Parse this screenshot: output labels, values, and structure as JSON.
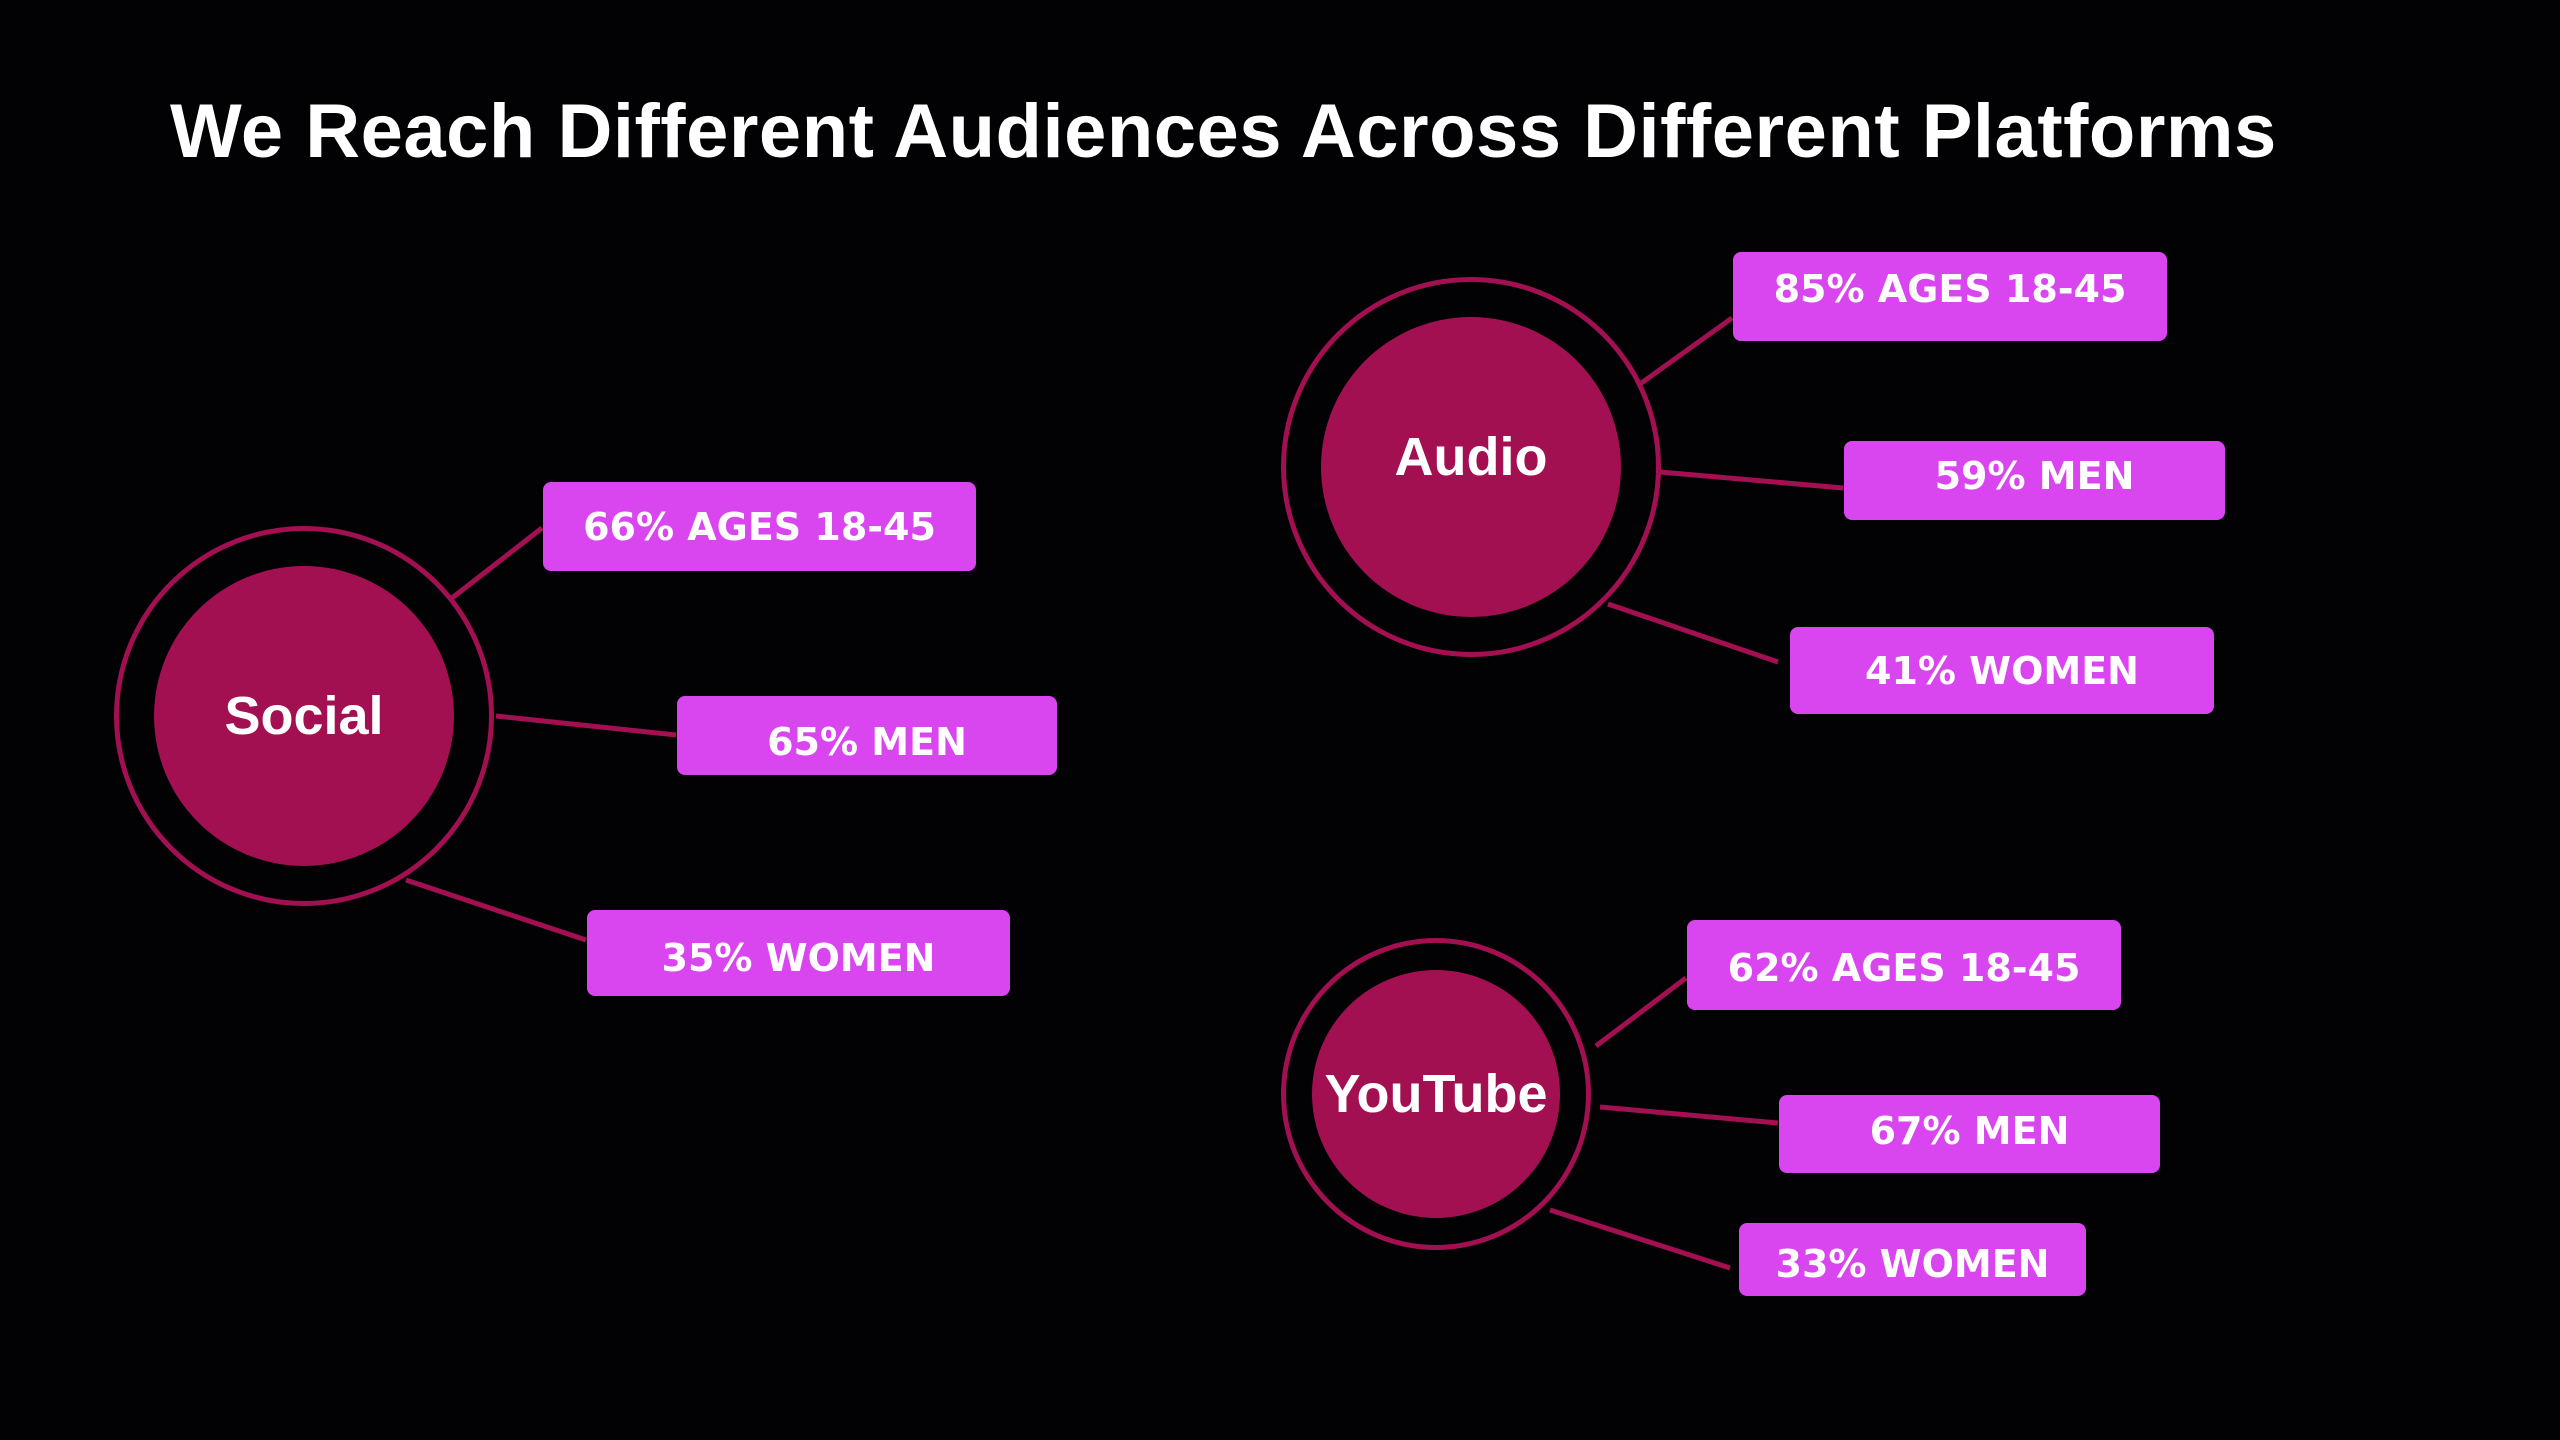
{
  "title": "We Reach Different Audiences Across Different Platforms",
  "colors": {
    "background": "#020103",
    "hub": "#a31052",
    "ring": "#a31052",
    "tag": "#d946ef",
    "text": "#ffffff"
  },
  "platforms": [
    {
      "name": "Social",
      "stats": [
        "66% AGES 18-45",
        "65% MEN",
        "35% WOMEN"
      ]
    },
    {
      "name": "Audio",
      "stats": [
        "85% AGES 18-45",
        "59% MEN",
        "41% WOMEN"
      ]
    },
    {
      "name": "YouTube",
      "stats": [
        "62% AGES 18-45",
        "67% MEN",
        "33% WOMEN"
      ]
    }
  ]
}
